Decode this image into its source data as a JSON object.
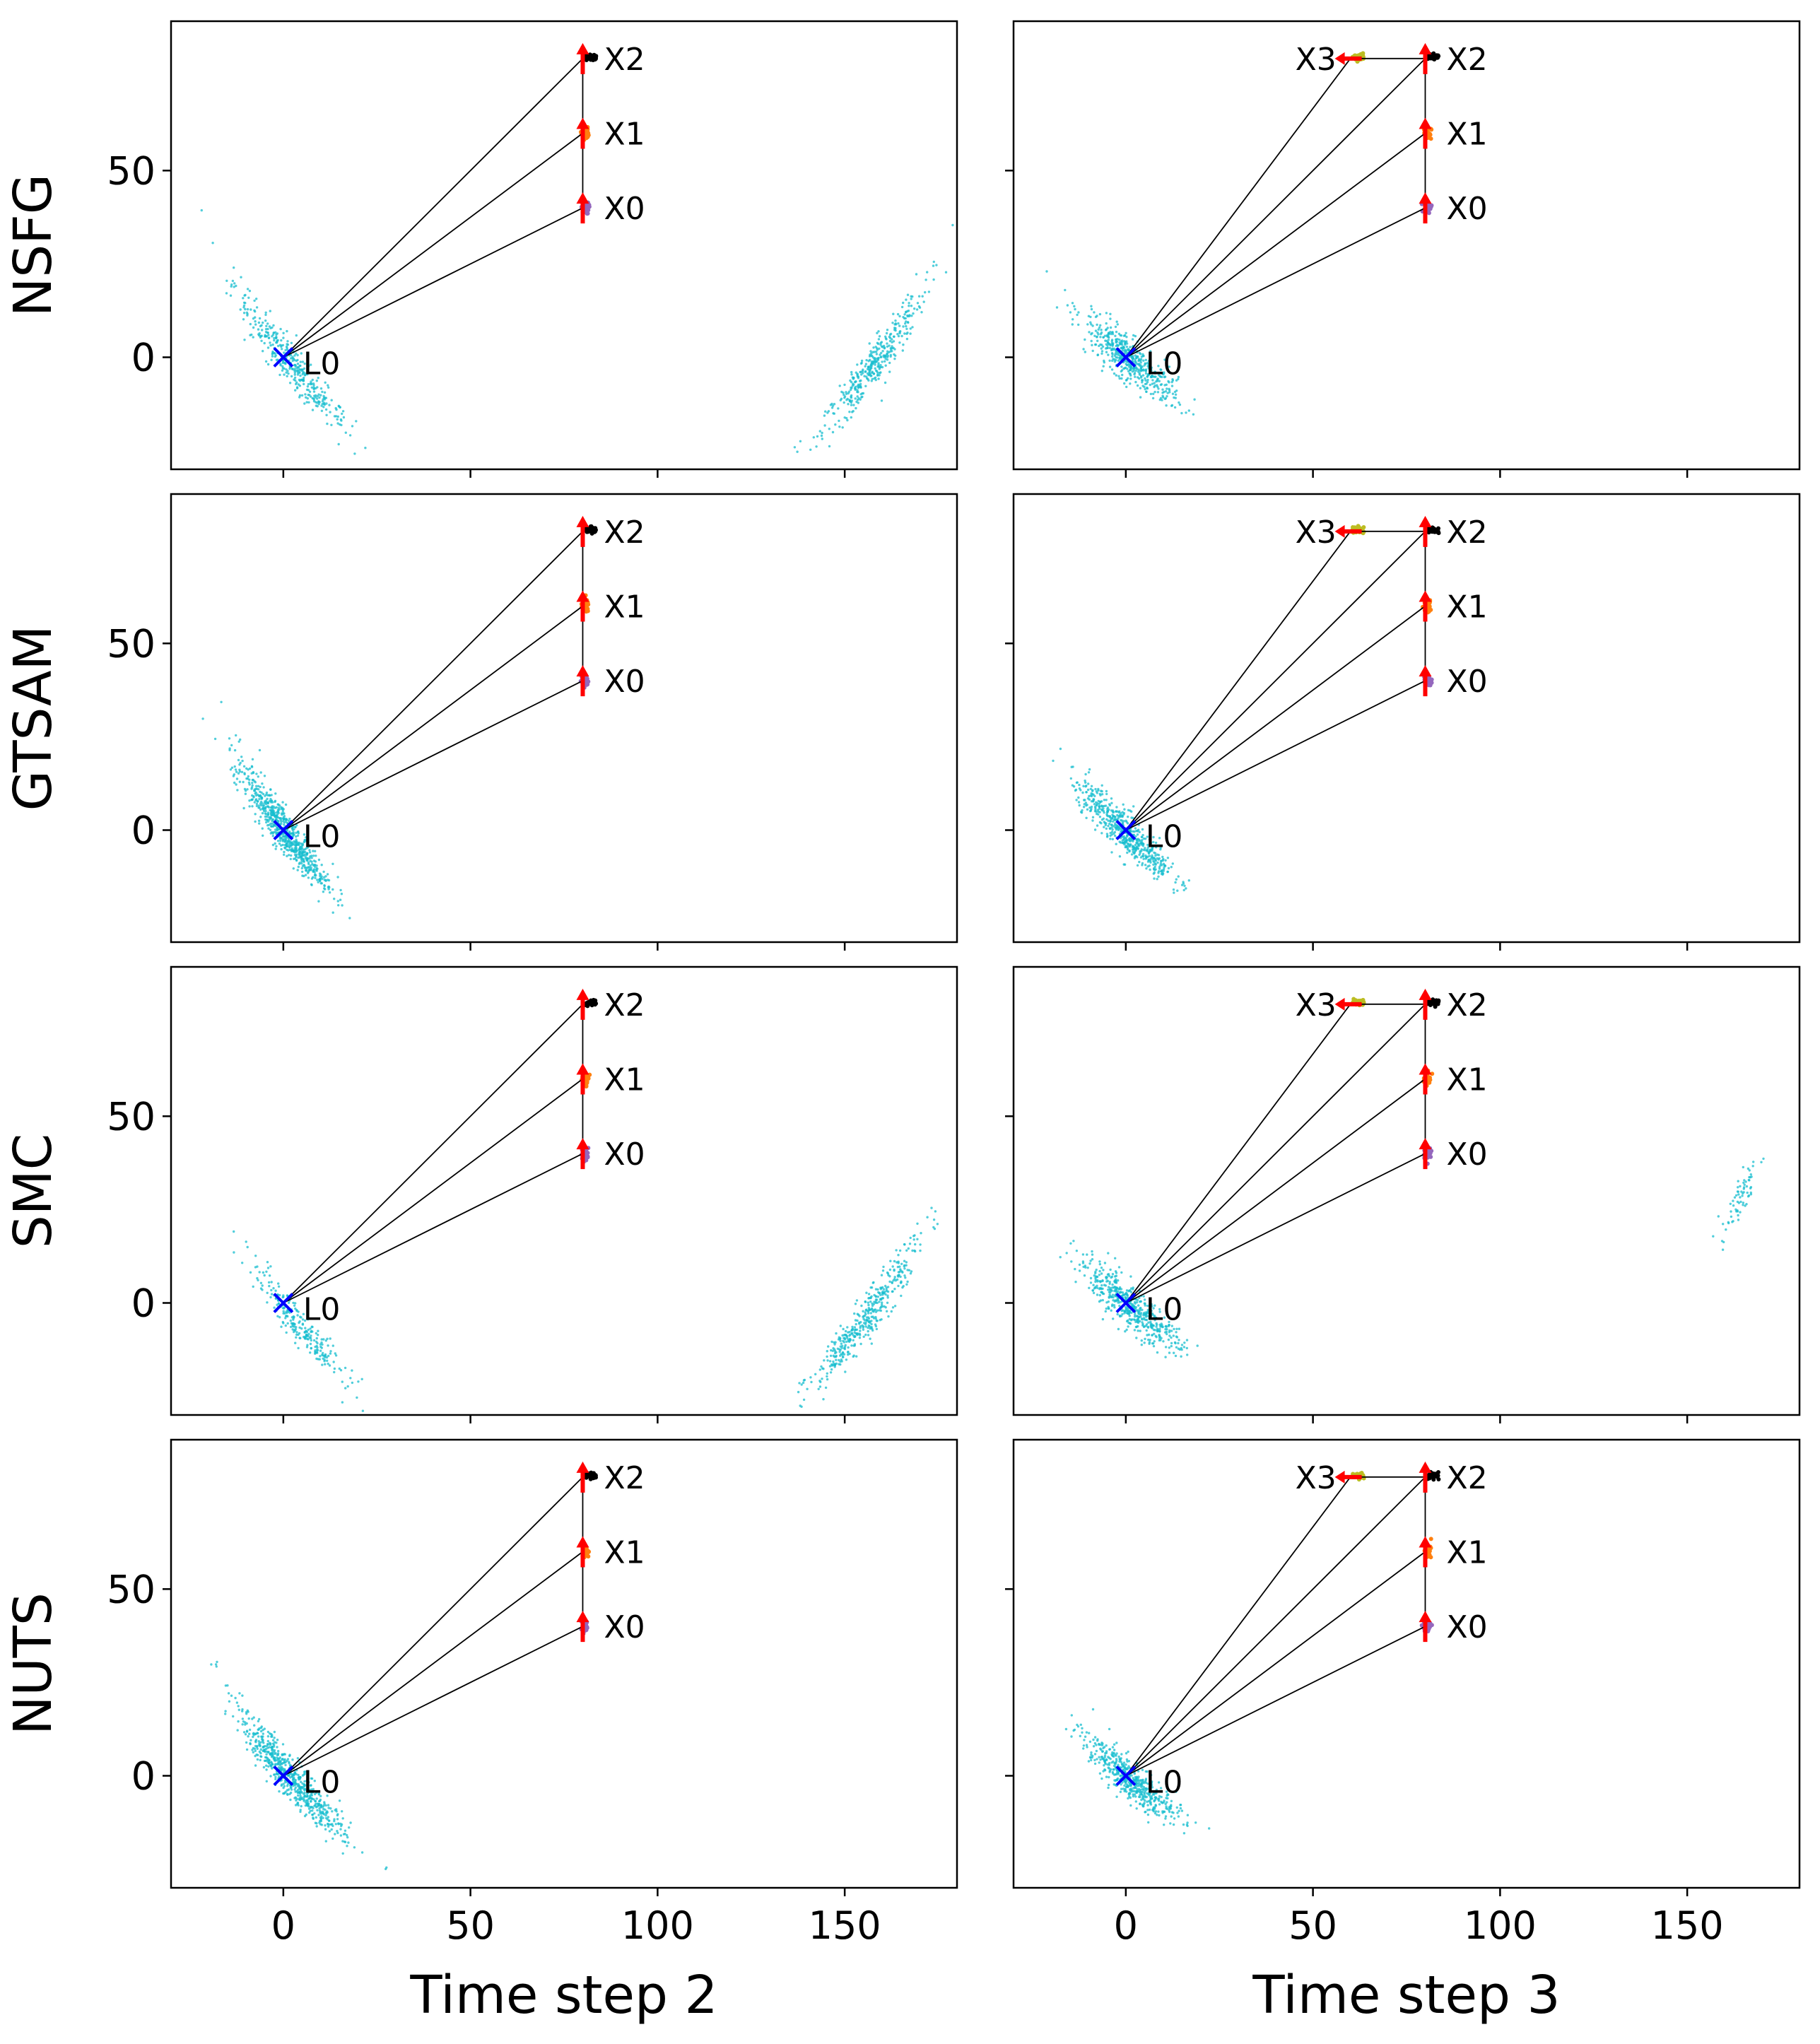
{
  "chart_data": {
    "type": "scatter",
    "layout": {
      "rows": 4,
      "cols": 2
    },
    "row_labels": [
      "NSFG",
      "GTSAM",
      "SMC",
      "NUTS"
    ],
    "column_labels": [
      "Time step 2",
      "Time step 3"
    ],
    "xlim": [
      -30,
      180
    ],
    "ylim": [
      -30,
      90
    ],
    "x_ticks": [
      0,
      50,
      100,
      150
    ],
    "y_ticks": [
      0,
      50
    ],
    "grid": false,
    "legend": "none",
    "colors": {
      "landmark_samples": "#17becf",
      "landmark_marker": "#0000ff",
      "pose_marker": "#ff0000",
      "x0_samples": "#9467bd",
      "x1_samples": "#ff7f0e",
      "x2_samples": "#000000",
      "x3_samples": "#bcbd22",
      "edges": "#000000"
    },
    "panels": [
      {
        "method": "NSFG",
        "time_step": 2,
        "poses": [
          {
            "label": "X0",
            "x": 80,
            "y": 40
          },
          {
            "label": "X1",
            "x": 80,
            "y": 60
          },
          {
            "label": "X2",
            "x": 80,
            "y": 80
          }
        ],
        "landmark": {
          "label": "L0",
          "x": 0,
          "y": 0
        },
        "edges": [
          [
            "X0",
            "X1"
          ],
          [
            "X1",
            "X2"
          ],
          [
            "L0",
            "X0"
          ],
          [
            "L0",
            "X1"
          ],
          [
            "L0",
            "X2"
          ]
        ],
        "landmark_clusters": [
          {
            "center": [
              2,
              -2
            ],
            "spread_along": 12,
            "spread_across": 1.8,
            "slope": -1.3,
            "count": 380
          },
          {
            "center": [
              158,
              -2
            ],
            "spread_along": 12,
            "spread_across": 1.8,
            "slope": 1.4,
            "count": 380
          }
        ]
      },
      {
        "method": "NSFG",
        "time_step": 3,
        "poses": [
          {
            "label": "X0",
            "x": 80,
            "y": 40
          },
          {
            "label": "X1",
            "x": 80,
            "y": 60
          },
          {
            "label": "X2",
            "x": 80,
            "y": 80
          },
          {
            "label": "X3",
            "x": 60,
            "y": 80
          }
        ],
        "landmark": {
          "label": "L0",
          "x": 0,
          "y": 0
        },
        "edges": [
          [
            "X0",
            "X1"
          ],
          [
            "X1",
            "X2"
          ],
          [
            "X2",
            "X3"
          ],
          [
            "L0",
            "X0"
          ],
          [
            "L0",
            "X1"
          ],
          [
            "L0",
            "X2"
          ],
          [
            "L0",
            "X3"
          ]
        ],
        "landmark_clusters": [
          {
            "center": [
              1,
              -1
            ],
            "spread_along": 8,
            "spread_across": 2.2,
            "slope": -0.9,
            "count": 520
          }
        ]
      },
      {
        "method": "GTSAM",
        "time_step": 2,
        "poses": [
          {
            "label": "X0",
            "x": 80,
            "y": 40
          },
          {
            "label": "X1",
            "x": 80,
            "y": 60
          },
          {
            "label": "X2",
            "x": 80,
            "y": 80
          }
        ],
        "landmark": {
          "label": "L0",
          "x": 0,
          "y": 0
        },
        "edges": [
          [
            "X0",
            "X1"
          ],
          [
            "X1",
            "X2"
          ],
          [
            "L0",
            "X0"
          ],
          [
            "L0",
            "X1"
          ],
          [
            "L0",
            "X2"
          ]
        ],
        "landmark_clusters": [
          {
            "center": [
              0,
              0
            ],
            "spread_along": 10,
            "spread_across": 1.8,
            "slope": -1.4,
            "count": 700
          }
        ]
      },
      {
        "method": "GTSAM",
        "time_step": 3,
        "poses": [
          {
            "label": "X0",
            "x": 80,
            "y": 40
          },
          {
            "label": "X1",
            "x": 80,
            "y": 60
          },
          {
            "label": "X2",
            "x": 80,
            "y": 80
          },
          {
            "label": "X3",
            "x": 60,
            "y": 80
          }
        ],
        "landmark": {
          "label": "L0",
          "x": 0,
          "y": 0
        },
        "edges": [
          [
            "X0",
            "X1"
          ],
          [
            "X1",
            "X2"
          ],
          [
            "X2",
            "X3"
          ],
          [
            "L0",
            "X0"
          ],
          [
            "L0",
            "X1"
          ],
          [
            "L0",
            "X2"
          ],
          [
            "L0",
            "X3"
          ]
        ],
        "landmark_clusters": [
          {
            "center": [
              0,
              -1
            ],
            "spread_along": 9,
            "spread_across": 2.0,
            "slope": -1.0,
            "count": 560
          }
        ]
      },
      {
        "method": "SMC",
        "time_step": 2,
        "poses": [
          {
            "label": "X0",
            "x": 80,
            "y": 40
          },
          {
            "label": "X1",
            "x": 80,
            "y": 60
          },
          {
            "label": "X2",
            "x": 80,
            "y": 80
          }
        ],
        "landmark": {
          "label": "L0",
          "x": 0,
          "y": 0
        },
        "edges": [
          [
            "X0",
            "X1"
          ],
          [
            "X1",
            "X2"
          ],
          [
            "L0",
            "X0"
          ],
          [
            "L0",
            "X1"
          ],
          [
            "L0",
            "X2"
          ]
        ],
        "landmark_clusters": [
          {
            "center": [
              4,
              -6
            ],
            "spread_along": 10,
            "spread_across": 1.6,
            "slope": -1.3,
            "count": 260
          },
          {
            "center": [
              156,
              -4
            ],
            "spread_along": 12,
            "spread_across": 1.8,
            "slope": 1.4,
            "count": 420
          }
        ]
      },
      {
        "method": "SMC",
        "time_step": 3,
        "poses": [
          {
            "label": "X0",
            "x": 80,
            "y": 40
          },
          {
            "label": "X1",
            "x": 80,
            "y": 60
          },
          {
            "label": "X2",
            "x": 80,
            "y": 80
          },
          {
            "label": "X3",
            "x": 60,
            "y": 80
          }
        ],
        "landmark": {
          "label": "L0",
          "x": 0,
          "y": 0
        },
        "edges": [
          [
            "X0",
            "X1"
          ],
          [
            "X1",
            "X2"
          ],
          [
            "X2",
            "X3"
          ],
          [
            "L0",
            "X0"
          ],
          [
            "L0",
            "X1"
          ],
          [
            "L0",
            "X2"
          ],
          [
            "L0",
            "X3"
          ]
        ],
        "landmark_clusters": [
          {
            "center": [
              1,
              -1
            ],
            "spread_along": 9,
            "spread_across": 2.2,
            "slope": -0.9,
            "count": 520
          },
          {
            "center": [
              164,
              28
            ],
            "spread_along": 6,
            "spread_across": 1.2,
            "slope": 2.5,
            "count": 70
          }
        ]
      },
      {
        "method": "NUTS",
        "time_step": 2,
        "poses": [
          {
            "label": "X0",
            "x": 80,
            "y": 40
          },
          {
            "label": "X1",
            "x": 80,
            "y": 60
          },
          {
            "label": "X2",
            "x": 80,
            "y": 80
          }
        ],
        "landmark": {
          "label": "L0",
          "x": 0,
          "y": 0
        },
        "edges": [
          [
            "X0",
            "X1"
          ],
          [
            "X1",
            "X2"
          ],
          [
            "L0",
            "X0"
          ],
          [
            "L0",
            "X1"
          ],
          [
            "L0",
            "X2"
          ]
        ],
        "landmark_clusters": [
          {
            "center": [
              2,
              -1
            ],
            "spread_along": 11,
            "spread_across": 1.8,
            "slope": -1.2,
            "count": 650
          }
        ]
      },
      {
        "method": "NUTS",
        "time_step": 3,
        "poses": [
          {
            "label": "X0",
            "x": 80,
            "y": 40
          },
          {
            "label": "X1",
            "x": 80,
            "y": 60
          },
          {
            "label": "X2",
            "x": 80,
            "y": 80
          },
          {
            "label": "X3",
            "x": 60,
            "y": 80
          }
        ],
        "landmark": {
          "label": "L0",
          "x": 0,
          "y": 0
        },
        "edges": [
          [
            "X0",
            "X1"
          ],
          [
            "X1",
            "X2"
          ],
          [
            "X2",
            "X3"
          ],
          [
            "L0",
            "X0"
          ],
          [
            "L0",
            "X1"
          ],
          [
            "L0",
            "X2"
          ],
          [
            "L0",
            "X3"
          ]
        ],
        "landmark_clusters": [
          {
            "center": [
              1,
              -1
            ],
            "spread_along": 8,
            "spread_across": 2.0,
            "slope": -0.9,
            "count": 520
          }
        ]
      }
    ]
  }
}
